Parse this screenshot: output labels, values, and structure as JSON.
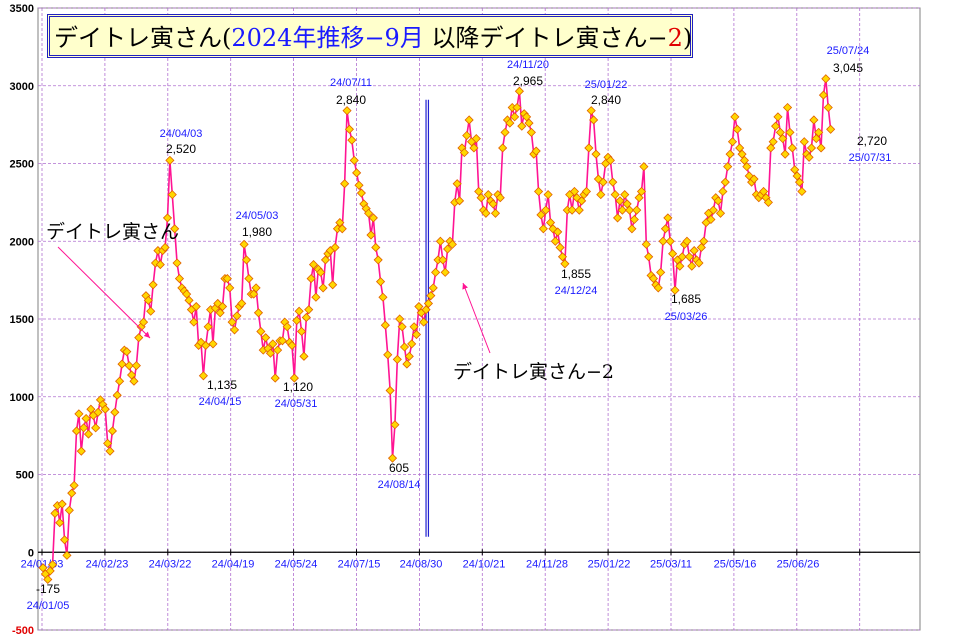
{
  "title": {
    "part1": "デイトレ寅さん(",
    "part2": "2024年推移−9月",
    "part3": " 以降デイトレ寅さん−",
    "part4": "2",
    "part5": ")"
  },
  "chart_data": {
    "type": "line",
    "title": "デイトレ寅さん(2024年推移−9月 以降デイトレ寅さん−2)",
    "ylim": [
      -500,
      3500
    ],
    "yticks": [
      -500,
      0,
      500,
      1000,
      1500,
      2000,
      2500,
      3000,
      3500
    ],
    "xtick_labels": [
      "24/01/03",
      "24/02/23",
      "24/03/22",
      "24/04/19",
      "24/05/24",
      "24/07/15",
      "24/08/30",
      "24/10/21",
      "24/11/28",
      "25/01/22",
      "25/03/11",
      "25/05/16",
      "25/06/26"
    ],
    "grid": true,
    "colors": {
      "line": "#ff1493",
      "marker_fill": "#ffd700",
      "marker_edge": "#e06000",
      "divider": "#2020d0",
      "grid": "#b070d0",
      "date_label": "#1a1aff",
      "negative_tick": "#e00000"
    },
    "series": [
      {
        "name": "デイトレ寅さん",
        "values": [
          -100,
          -140,
          -175,
          -120,
          -80,
          250,
          300,
          190,
          310,
          80,
          -20,
          270,
          380,
          430,
          780,
          890,
          650,
          800,
          860,
          760,
          920,
          880,
          800,
          900,
          980,
          950,
          920,
          700,
          650,
          780,
          900,
          1010,
          1100,
          1210,
          1300,
          1290,
          1200,
          1140,
          1100,
          1200,
          1380,
          1450,
          1480,
          1650,
          1620,
          1550,
          1720,
          1860,
          1940,
          1850,
          1940,
          1960,
          2150,
          2520,
          2300,
          2080,
          1860,
          1760,
          1700,
          1680,
          1660,
          1620,
          1560,
          1480,
          1580,
          1330,
          1350,
          1135,
          1330,
          1450,
          1560,
          1340,
          1570,
          1600,
          1540,
          1580,
          1760,
          1760,
          1700,
          1480,
          1430,
          1520,
          1580,
          1600,
          1980,
          1880,
          1760,
          1660,
          1660,
          1700,
          1540,
          1420,
          1300,
          1380,
          1310,
          1280,
          1340,
          1120,
          1300,
          1360,
          1360,
          1480,
          1450,
          1350,
          1330,
          1120,
          1490,
          1550,
          1420,
          1260,
          1510,
          1560,
          1760,
          1850,
          1640,
          1820,
          1800,
          1700,
          1880,
          1920,
          1940,
          1720,
          1960,
          2080,
          2120,
          2080,
          2370,
          2840,
          2720,
          2650,
          2520,
          2440,
          2360,
          2310,
          2240,
          2210,
          2180,
          2040,
          2150,
          1960,
          1880,
          1740,
          1640,
          1460,
          1270,
          1040,
          605,
          820,
          1240,
          1500,
          1450,
          1320,
          1210,
          1260,
          1340,
          1450,
          1400,
          1580,
          1540,
          1480,
          1560
        ]
      },
      {
        "name": "デイトレ寅さん−2",
        "values": [
          1600,
          1650,
          1700,
          1800,
          1880,
          2000,
          1880,
          1800,
          1950,
          2000,
          1980,
          2250,
          2370,
          2260,
          2600,
          2570,
          2680,
          2780,
          2640,
          2600,
          2660,
          2320,
          2280,
          2200,
          2180,
          2300,
          2260,
          2240,
          2180,
          2300,
          2280,
          2600,
          2700,
          2780,
          2760,
          2860,
          2800,
          2860,
          2965,
          2740,
          2820,
          2800,
          2760,
          2700,
          2560,
          2580,
          2320,
          2170,
          2080,
          2200,
          2300,
          2120,
          2080,
          2000,
          2060,
          1960,
          1900,
          1855,
          2200,
          2300,
          2200,
          2320,
          2280,
          2200,
          2260,
          2300,
          2320,
          2600,
          2840,
          2780,
          2560,
          2400,
          2300,
          2380,
          2500,
          2540,
          2520,
          2380,
          2300,
          2150,
          2260,
          2200,
          2300,
          2240,
          2200,
          2080,
          2140,
          2200,
          2280,
          2320,
          2480,
          1980,
          1900,
          1780,
          1760,
          1720,
          1700,
          1800,
          2000,
          2080,
          2150,
          2000,
          1920,
          1685,
          1880,
          1840,
          1900,
          1980,
          2000,
          1900,
          1840,
          1940,
          1880,
          1860,
          1960,
          2000,
          2120,
          2180,
          2140,
          2200,
          2280,
          2260,
          2180,
          2320,
          2380,
          2480,
          2560,
          2640,
          2800,
          2720,
          2600,
          2560,
          2520,
          2480,
          2420,
          2380,
          2400,
          2300,
          2280,
          2300,
          2320,
          2280,
          2250,
          2600,
          2640,
          2740,
          2800,
          2700,
          2660,
          2560,
          2860,
          2700,
          2600,
          2460,
          2420,
          2380,
          2320,
          2640,
          2560,
          2540,
          2600,
          2780,
          2660,
          2700,
          2600,
          2940,
          3045,
          2860,
          2720
        ]
      }
    ],
    "annotations": [
      {
        "value": "-175",
        "date": "24/01/05"
      },
      {
        "value": "2,520",
        "date": "24/04/03"
      },
      {
        "value": "1,135",
        "date": "24/04/15"
      },
      {
        "value": "1,980",
        "date": "24/05/03"
      },
      {
        "value": "1,120",
        "date": "24/05/31"
      },
      {
        "value": "2,840",
        "date": "24/07/11"
      },
      {
        "value": "605",
        "date": "24/08/14"
      },
      {
        "value": "2,965",
        "date": "24/11/20"
      },
      {
        "value": "1,855",
        "date": "24/12/24"
      },
      {
        "value": "2,840",
        "date": "25/01/22"
      },
      {
        "value": "1,685",
        "date": "25/03/26"
      },
      {
        "value": "3,045",
        "date": "25/07/24"
      },
      {
        "value": "2,720",
        "date": "25/07/31"
      }
    ],
    "series_labels": [
      "デイトレ寅さん",
      "デイトレ寅さん−2"
    ]
  }
}
